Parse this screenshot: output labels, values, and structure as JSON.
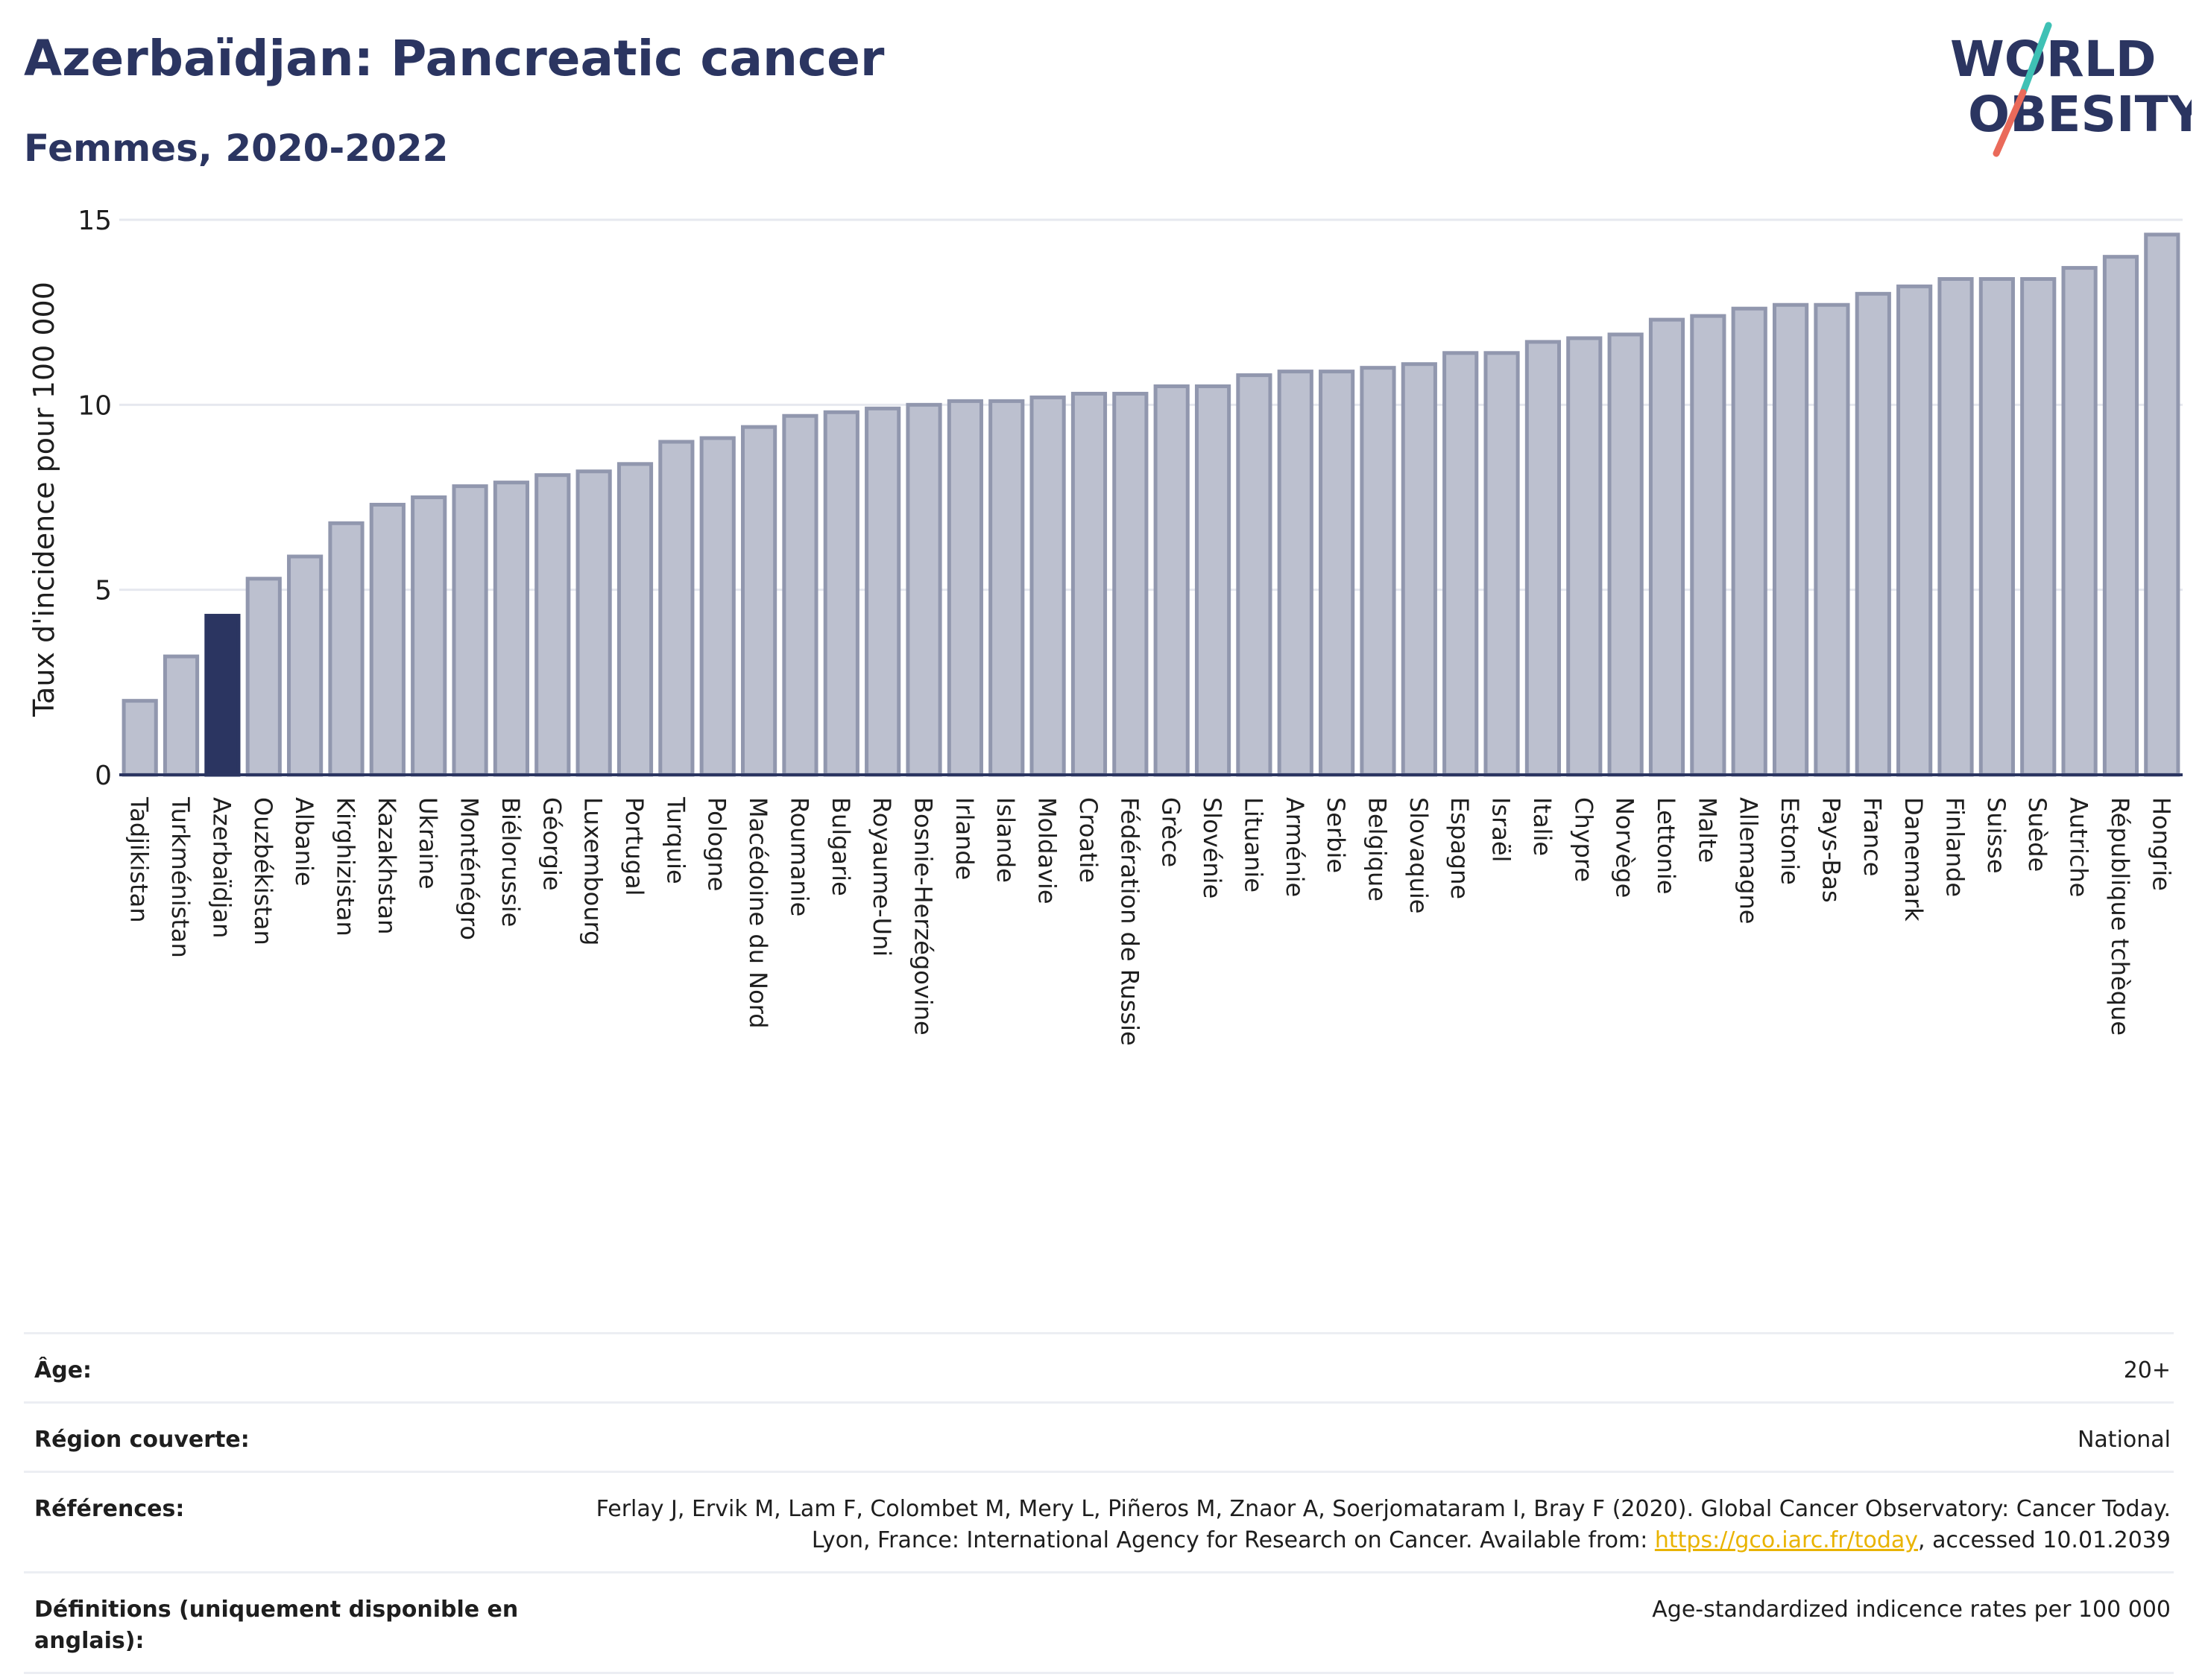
{
  "header": {
    "title": "Azerbaïdjan: Pancreatic cancer",
    "subtitle": "Femmes, 2020-2022"
  },
  "logo": {
    "line1": "WORLD",
    "line2": "OBESITY",
    "icon": "world-obesity-logo"
  },
  "chart_data": {
    "type": "bar",
    "ylabel": "Taux d'incidence pour 100 000",
    "xlabel": "",
    "ylim": [
      0,
      15
    ],
    "yticks": [
      0,
      5,
      10,
      15
    ],
    "grid": true,
    "highlight": "Azerbaïdjan",
    "colors": {
      "bar": "#bcc0cf",
      "bar_border": "#9197ae",
      "highlight": "#2b3561"
    },
    "categories": [
      "Tadjikistan",
      "Turkménistan",
      "Azerbaïdjan",
      "Ouzbékistan",
      "Albanie",
      "Kirghizistan",
      "Kazakhstan",
      "Ukraine",
      "Monténégro",
      "Biélorussie",
      "Géorgie",
      "Luxembourg",
      "Portugal",
      "Turquie",
      "Pologne",
      "Macédoine du Nord",
      "Roumanie",
      "Bulgarie",
      "Royaume-Uni",
      "Bosnie-Herzégovine",
      "Irlande",
      "Islande",
      "Moldavie",
      "Croatie",
      "Fédération de Russie",
      "Grèce",
      "Slovénie",
      "Lituanie",
      "Arménie",
      "Serbie",
      "Belgique",
      "Slovaquie",
      "Espagne",
      "Israël",
      "Italie",
      "Chypre",
      "Norvège",
      "Lettonie",
      "Malte",
      "Allemagne",
      "Estonie",
      "Pays-Bas",
      "France",
      "Danemark",
      "Finlande",
      "Suisse",
      "Suède",
      "Autriche",
      "République tchèque",
      "Hongrie"
    ],
    "values": [
      2.0,
      3.2,
      4.3,
      5.3,
      5.9,
      6.8,
      7.3,
      7.5,
      7.8,
      7.9,
      8.1,
      8.2,
      8.4,
      9.0,
      9.1,
      9.4,
      9.7,
      9.8,
      9.9,
      10.0,
      10.1,
      10.1,
      10.2,
      10.3,
      10.3,
      10.5,
      10.5,
      10.8,
      10.9,
      10.9,
      11.0,
      11.1,
      11.4,
      11.4,
      11.7,
      11.8,
      11.9,
      12.3,
      12.4,
      12.6,
      12.7,
      12.7,
      13.0,
      13.2,
      13.4,
      13.4,
      13.4,
      13.7,
      14.0,
      14.6
    ]
  },
  "info": {
    "age_label": "Âge:",
    "age_value": "20+",
    "region_label": "Région couverte:",
    "region_value": "National",
    "references_label": "Références:",
    "references_text": "Ferlay J, Ervik M, Lam F, Colombet M, Mery L, Piñeros M, Znaor A, Soerjomataram I, Bray F (2020). Global Cancer Observatory: Cancer Today. Lyon, France: International Agency for Research on Cancer. Available from: ",
    "references_link": "https://gco.iarc.fr/today",
    "references_suffix": ", accessed 10.01.2039",
    "definitions_label": "Définitions (uniquement disponible en anglais):",
    "definitions_value": "Age-standardized indicence rates per 100 000"
  }
}
